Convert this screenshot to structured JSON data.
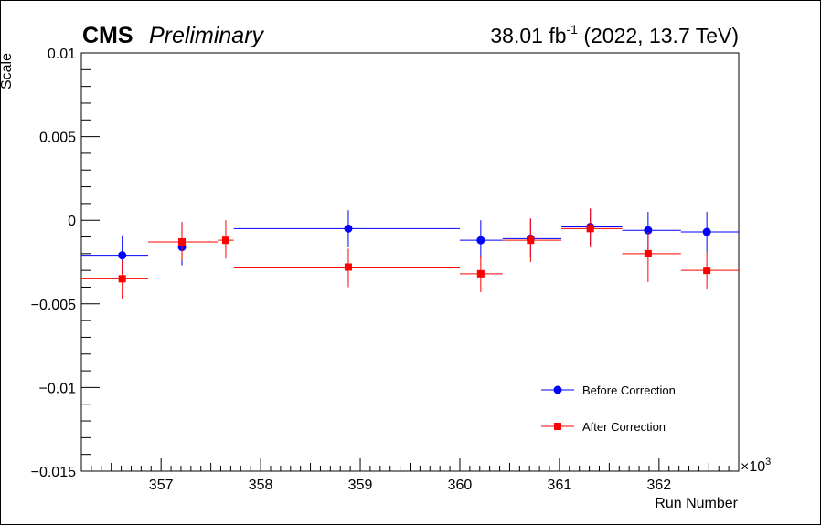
{
  "chart_data": {
    "type": "scatter",
    "header_left_bold": "CMS",
    "header_left_italic": "Preliminary",
    "header_right_main": "38.01 fb",
    "header_right_sup": "-1",
    "header_right_tail": " (2022, 13.7 TeV)",
    "xlabel": "Run Number",
    "ylabel": "Scale",
    "x_multiplier_base": "×10",
    "x_multiplier_exp": "3",
    "xlim": [
      356.2,
      362.8
    ],
    "ylim": [
      -0.015,
      0.01
    ],
    "x_tick_values": [
      357,
      358,
      359,
      360,
      361,
      362
    ],
    "x_tick_labels": [
      "357",
      "358",
      "359",
      "360",
      "361",
      "362"
    ],
    "y_tick_values": [
      0.01,
      0.005,
      0,
      -0.005,
      -0.01,
      -0.015
    ],
    "y_tick_labels": [
      "0.01",
      "0.005",
      "0",
      "−0.005",
      "−0.01",
      "−0.015"
    ],
    "grid": false,
    "legend_position": "bottom-right",
    "series": [
      {
        "name": "Before Correction",
        "color": "#0000ff",
        "marker": "circle",
        "points": [
          {
            "x": 356.61,
            "xlo": 356.2,
            "xhi": 356.87,
            "y": -0.0021,
            "ylo": -0.0032,
            "yhi": -0.0009
          },
          {
            "x": 357.21,
            "xlo": 356.87,
            "xhi": 357.57,
            "y": -0.0016,
            "ylo": -0.0027,
            "yhi": -0.0004
          },
          {
            "x": 358.88,
            "xlo": 357.73,
            "xhi": 360.0,
            "y": -0.0005,
            "ylo": -0.0016,
            "yhi": 0.0006
          },
          {
            "x": 360.21,
            "xlo": 360.0,
            "xhi": 360.43,
            "y": -0.0012,
            "ylo": -0.0023,
            "yhi": 0.0
          },
          {
            "x": 360.71,
            "xlo": 360.43,
            "xhi": 361.02,
            "y": -0.0011,
            "ylo": -0.0022,
            "yhi": 0.0001
          },
          {
            "x": 361.31,
            "xlo": 361.02,
            "xhi": 361.63,
            "y": -0.0004,
            "ylo": -0.0015,
            "yhi": 0.0007
          },
          {
            "x": 361.89,
            "xlo": 361.63,
            "xhi": 362.22,
            "y": -0.0006,
            "ylo": -0.0018,
            "yhi": 0.0005
          },
          {
            "x": 362.48,
            "xlo": 362.22,
            "xhi": 362.8,
            "y": -0.0007,
            "ylo": -0.0019,
            "yhi": 0.0005
          }
        ]
      },
      {
        "name": "After Correction",
        "color": "#ff0000",
        "marker": "square",
        "points": [
          {
            "x": 356.61,
            "xlo": 356.2,
            "xhi": 356.87,
            "y": -0.0035,
            "ylo": -0.0047,
            "yhi": -0.0024
          },
          {
            "x": 357.21,
            "xlo": 356.87,
            "xhi": 357.57,
            "y": -0.0013,
            "ylo": -0.0024,
            "yhi": -0.0001
          },
          {
            "x": 357.65,
            "xlo": 357.57,
            "xhi": 357.73,
            "y": -0.0012,
            "ylo": -0.0023,
            "yhi": 0.0
          },
          {
            "x": 358.88,
            "xlo": 357.73,
            "xhi": 360.0,
            "y": -0.0028,
            "ylo": -0.004,
            "yhi": -0.0017
          },
          {
            "x": 360.21,
            "xlo": 360.0,
            "xhi": 360.43,
            "y": -0.0032,
            "ylo": -0.0043,
            "yhi": -0.0021
          },
          {
            "x": 360.71,
            "xlo": 360.43,
            "xhi": 361.02,
            "y": -0.0012,
            "ylo": -0.0025,
            "yhi": 0.0001
          },
          {
            "x": 361.31,
            "xlo": 361.02,
            "xhi": 361.63,
            "y": -0.0005,
            "ylo": -0.0016,
            "yhi": 0.0007
          },
          {
            "x": 361.89,
            "xlo": 361.63,
            "xhi": 362.22,
            "y": -0.002,
            "ylo": -0.0037,
            "yhi": -0.0007
          },
          {
            "x": 362.48,
            "xlo": 362.22,
            "xhi": 362.8,
            "y": -0.003,
            "ylo": -0.0041,
            "yhi": -0.0019
          }
        ]
      }
    ]
  }
}
